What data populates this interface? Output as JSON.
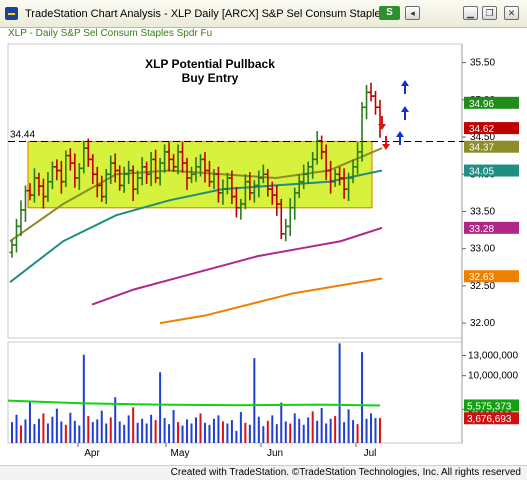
{
  "window": {
    "title": "TradeStation Chart Analysis - XLP Daily [ARCX] S&P Sel Consum Staples",
    "s_button": "S",
    "min_glyph": "▁",
    "restore_glyph": "❐",
    "close_glyph": "✕",
    "extra_glyph": "◂"
  },
  "chart_header": "XLP - Daily  S&P Sel Consum Staples Spdr Fu",
  "annotation": {
    "line1": "XLP Potential Pullback",
    "line2": "Buy Entry"
  },
  "footer": "Created with TradeStation. ©TradeStation Technologies, Inc. All rights reserved",
  "colors": {
    "up": "#2a7a1f",
    "down": "#c00000",
    "zone_fill": "#d7f23c",
    "zone_border": "#e58c00",
    "ma_short": "#8c8c2a",
    "ma_mid": "#208e82",
    "ma_long": "#b0278a",
    "ma_longest": "#f08000",
    "volume": "#1f3fd0",
    "volume_avg": "#11d311",
    "arrow_up": "#1133cc",
    "arrow_down": "#dd1111"
  },
  "chart_data": {
    "type": "candlestick",
    "price_axis": {
      "ylim": [
        31.8,
        35.75
      ],
      "ticks": [
        "35.50",
        "35.00",
        "34.50",
        "34.00",
        "33.50",
        "33.00",
        "32.50",
        "32.00"
      ]
    },
    "volume_axis": {
      "ylim": [
        0,
        15000000
      ],
      "ticks": [
        "13,000,000",
        "10,000,000",
        "5,000,000"
      ]
    },
    "months": [
      "Apr",
      "May",
      "Jun",
      "Jul"
    ],
    "level_line": {
      "label": "34.44",
      "value": 34.44
    },
    "consolidation_zone": {
      "top": 34.44,
      "bottom": 33.55
    },
    "price_labels": [
      {
        "text": "34.96",
        "value": 34.96,
        "color": "#208c1a"
      },
      {
        "text": "34.62",
        "value": 34.62,
        "color": "#c00000"
      },
      {
        "text": "34.37",
        "value": 34.37,
        "color": "#8c8c2a"
      },
      {
        "text": "34.05",
        "value": 34.05,
        "color": "#208e82"
      },
      {
        "text": "33.28",
        "value": 33.28,
        "color": "#b0278a"
      },
      {
        "text": "32.63",
        "value": 32.63,
        "color": "#f08000"
      }
    ],
    "volume_labels": [
      {
        "text": "5,575,373",
        "value": 5575373,
        "color": "#11a011"
      },
      {
        "text": "3,676,693",
        "value": 3676693,
        "color": "#cc1111"
      }
    ],
    "closes": [
      33.05,
      33.3,
      33.52,
      33.78,
      33.72,
      33.95,
      33.84,
      33.7,
      33.9,
      34.1,
      34.05,
      33.9,
      34.25,
      34.15,
      33.95,
      34.08,
      34.35,
      34.2,
      34.0,
      33.85,
      33.7,
      34.0,
      34.15,
      34.05,
      33.85,
      34.0,
      34.05,
      33.8,
      33.95,
      34.1,
      34.0,
      34.2,
      33.95,
      34.15,
      34.3,
      34.2,
      34.1,
      34.3,
      34.15,
      33.95,
      34.0,
      34.1,
      34.2,
      34.05,
      33.9,
      34.0,
      33.75,
      33.8,
      33.95,
      33.7,
      33.55,
      33.6,
      33.9,
      33.75,
      33.85,
      33.95,
      34.0,
      33.8,
      33.72,
      33.6,
      33.2,
      33.3,
      33.55,
      33.75,
      33.9,
      34.0,
      34.1,
      34.2,
      34.45,
      34.3,
      34.05,
      33.9,
      34.0,
      33.95,
      33.8,
      33.95,
      34.1,
      34.3,
      34.9,
      35.1,
      35.05,
      34.9,
      34.62
    ],
    "ma_short": [
      33.1,
      33.6,
      34.0,
      34.05,
      34.0,
      33.95,
      34.05,
      34.35
    ],
    "ma_mid": [
      32.55,
      33.1,
      33.45,
      33.65,
      33.8,
      33.85,
      33.9,
      34.05
    ],
    "ma_long": [
      32.25,
      32.45,
      32.6,
      32.75,
      32.9,
      33.0,
      33.1,
      33.28
    ],
    "ma_longest": [
      32.0,
      32.1,
      32.25,
      32.4,
      32.5,
      32.6
    ],
    "volume_avg": 5575373
  }
}
